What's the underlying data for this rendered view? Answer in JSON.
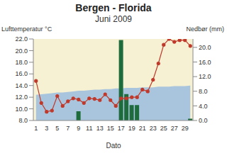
{
  "chart_data": {
    "type": "combo",
    "title": "Bergen - Florida",
    "subtitle": "Juni 2009",
    "y_label": "Lufttemperatur °C",
    "y2_label": "Nedbør (mm)",
    "x_label": "Dato",
    "categories": [
      "1",
      null,
      "3",
      null,
      "5",
      null,
      "7",
      null,
      "9",
      null,
      "11",
      null,
      "13",
      null,
      "15",
      null,
      "17",
      null,
      "19",
      null,
      "21",
      null,
      "23",
      null,
      "25",
      null,
      "27",
      null,
      "29",
      null
    ],
    "series": [
      {
        "type": "area",
        "color": "#a9c5de",
        "values": [
          12.4,
          12.5,
          12.6,
          12.7,
          12.8,
          12.8,
          12.9,
          13.0,
          13.1,
          13.1,
          13.2,
          13.3,
          13.3,
          13.4,
          13.4,
          13.5,
          13.5,
          13.6,
          13.6,
          13.6,
          13.7,
          13.7,
          13.7,
          13.8,
          13.8,
          13.8,
          13.9,
          13.9,
          13.9,
          14.0
        ]
      },
      {
        "type": "bar",
        "color": "#1e6b3c",
        "axis": "y2",
        "values": [
          0,
          0,
          0,
          0,
          0,
          0,
          0,
          0,
          2.5,
          0,
          0,
          0,
          0,
          0,
          0,
          0,
          22.0,
          7.2,
          4.2,
          4.2,
          0,
          0,
          0,
          0,
          0,
          0,
          0,
          0,
          0,
          0.5
        ]
      },
      {
        "type": "line",
        "color": "#c0392b",
        "marker": "circle",
        "values": [
          14.8,
          11.0,
          9.5,
          9.7,
          12.2,
          10.5,
          11.3,
          11.8,
          11.6,
          11.0,
          11.8,
          11.7,
          11.5,
          12.5,
          11.5,
          10.5,
          11.8,
          11.8,
          12.0,
          12.0,
          13.3,
          13.0,
          15.0,
          17.8,
          21.0,
          22.0,
          21.5,
          21.8,
          21.8,
          20.8
        ]
      }
    ],
    "ylim": [
      8,
      22
    ],
    "yticks": [
      {
        "value": 8,
        "label": "8.0"
      },
      {
        "value": 10,
        "label": "10.0"
      },
      {
        "value": 12,
        "label": "12.0"
      },
      {
        "value": 14,
        "label": "14.0"
      },
      {
        "value": 16,
        "label": "16.0"
      },
      {
        "value": 18,
        "label": "18.0"
      },
      {
        "value": 20,
        "label": "20.0"
      },
      {
        "value": 22,
        "label": "22.0"
      }
    ],
    "y2lim": [
      0,
      22.3
    ],
    "y2ticks": [
      {
        "value": 0,
        "label": "0.0"
      },
      {
        "value": 4,
        "label": "4.0"
      },
      {
        "value": 8,
        "label": "8.0"
      },
      {
        "value": 12,
        "label": "12.0"
      },
      {
        "value": 16,
        "label": "16.0"
      },
      {
        "value": 20,
        "label": "20.0"
      }
    ],
    "grid": false
  }
}
